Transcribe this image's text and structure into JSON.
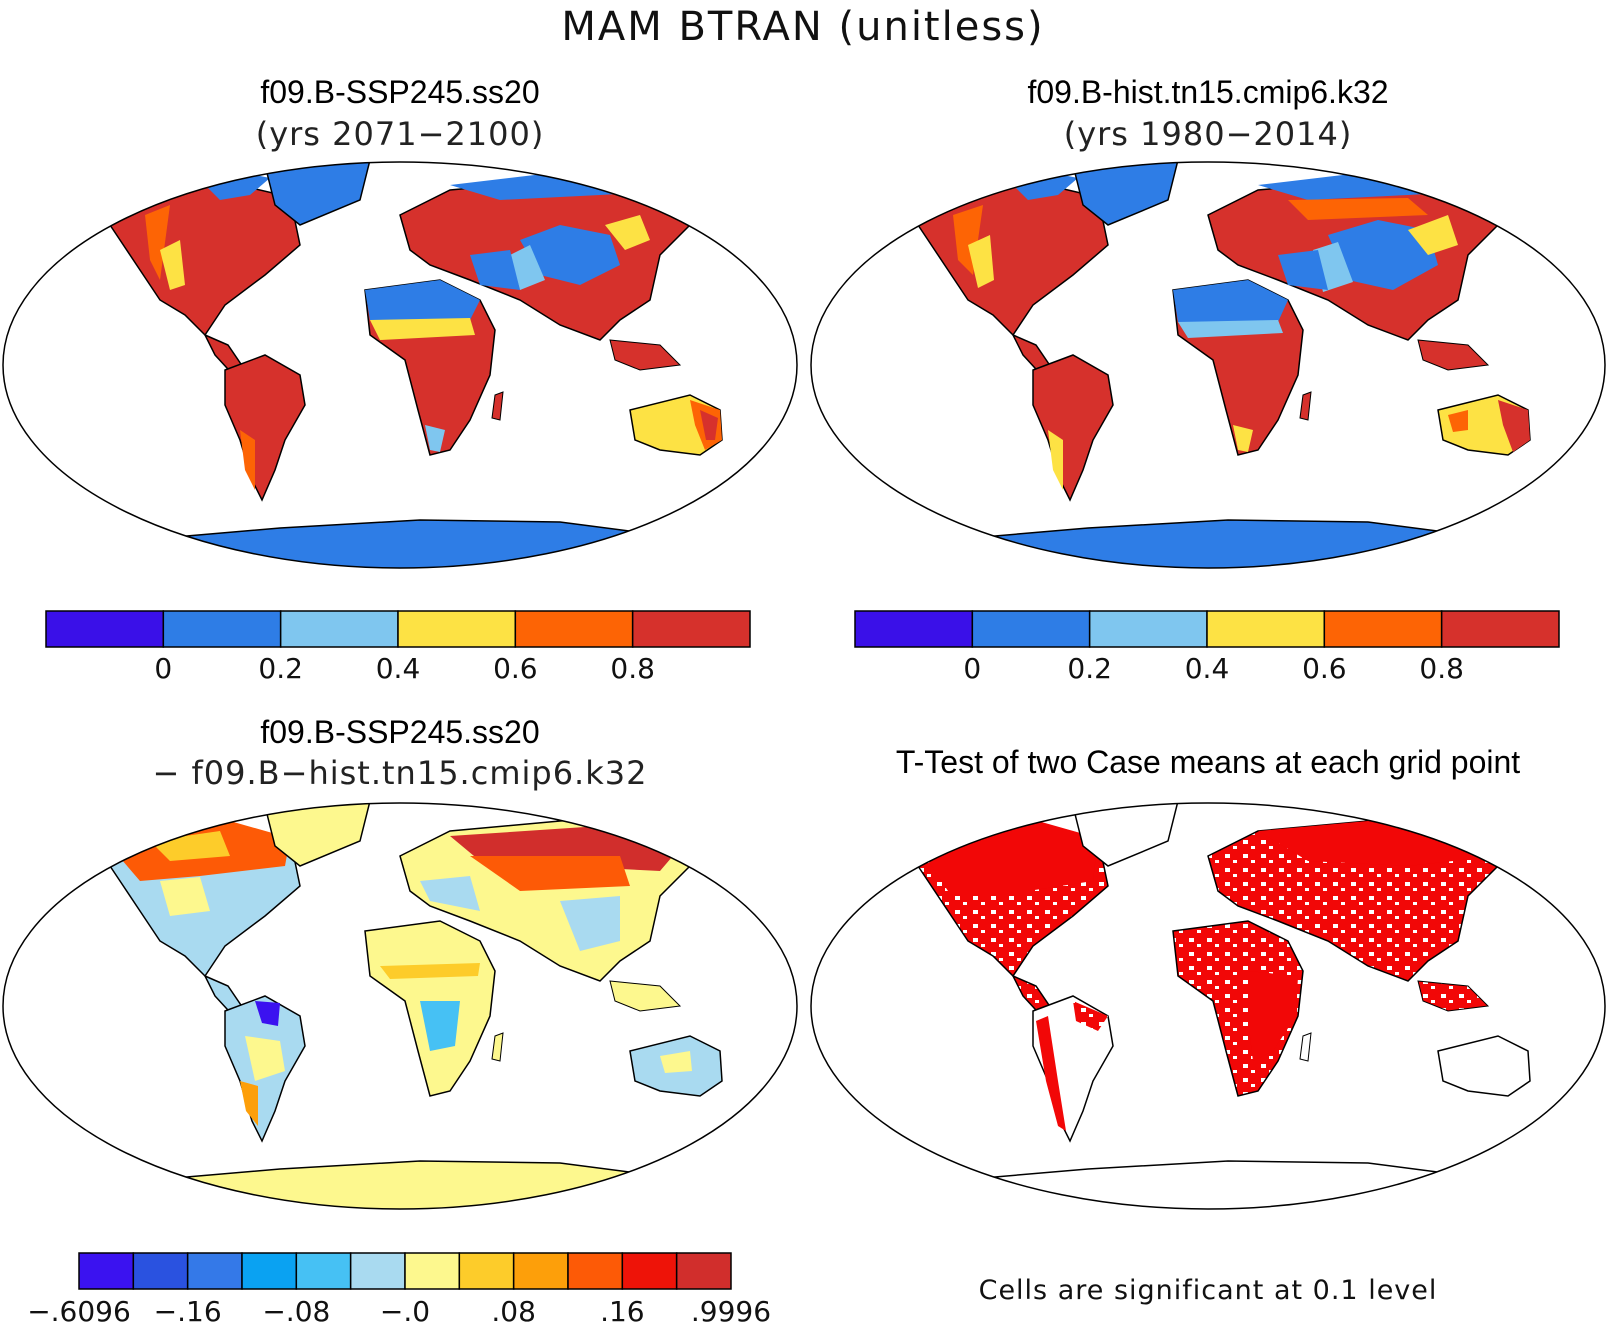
{
  "figure": {
    "title": "MAM BTRAN (unitless)",
    "panels": [
      {
        "id": "top-left",
        "title_line1": "f09.B-SSP245.ss20",
        "title_line2": "(yrs 2071−2100)",
        "colorbar": {
          "colors": [
            "#3a10e8",
            "#2e7de6",
            "#7fc6ef",
            "#fde244",
            "#fd6405",
            "#d6312c"
          ],
          "tick_labels": [
            "0",
            "0.2",
            "0.4",
            "0.6",
            "0.8"
          ]
        }
      },
      {
        "id": "top-right",
        "title_line1": "f09.B-hist.tn15.cmip6.k32",
        "title_line2": "(yrs 1980−2014)",
        "colorbar": {
          "colors": [
            "#3a10e8",
            "#2e7de6",
            "#7fc6ef",
            "#fde244",
            "#fd6405",
            "#d6312c"
          ],
          "tick_labels": [
            "0",
            "0.2",
            "0.4",
            "0.6",
            "0.8"
          ]
        }
      },
      {
        "id": "bottom-left",
        "title_line1": "f09.B-SSP245.ss20",
        "title_line2": "− f09.B−hist.tn15.cmip6.k32",
        "colorbar": {
          "colors": [
            "#3b12f0",
            "#2a52e0",
            "#3479e8",
            "#0aa2f2",
            "#46c1f4",
            "#a9daf0",
            "#fdf88e",
            "#fdcc2a",
            "#fd9f0a",
            "#fd5a06",
            "#ee1308",
            "#d12e2c"
          ],
          "tick_labels": [
            "−.6096",
            "−.16",
            "−.08",
            "−.0",
            ".08",
            ".16",
            ".9996"
          ]
        }
      },
      {
        "id": "bottom-right",
        "title_line1": "T-Test of two Case means at each grid point",
        "note": "Cells are significant at 0.1 level"
      }
    ]
  },
  "colors": {
    "ocean": "#ffffff",
    "coast": "#000000",
    "significant": "#f20707"
  }
}
